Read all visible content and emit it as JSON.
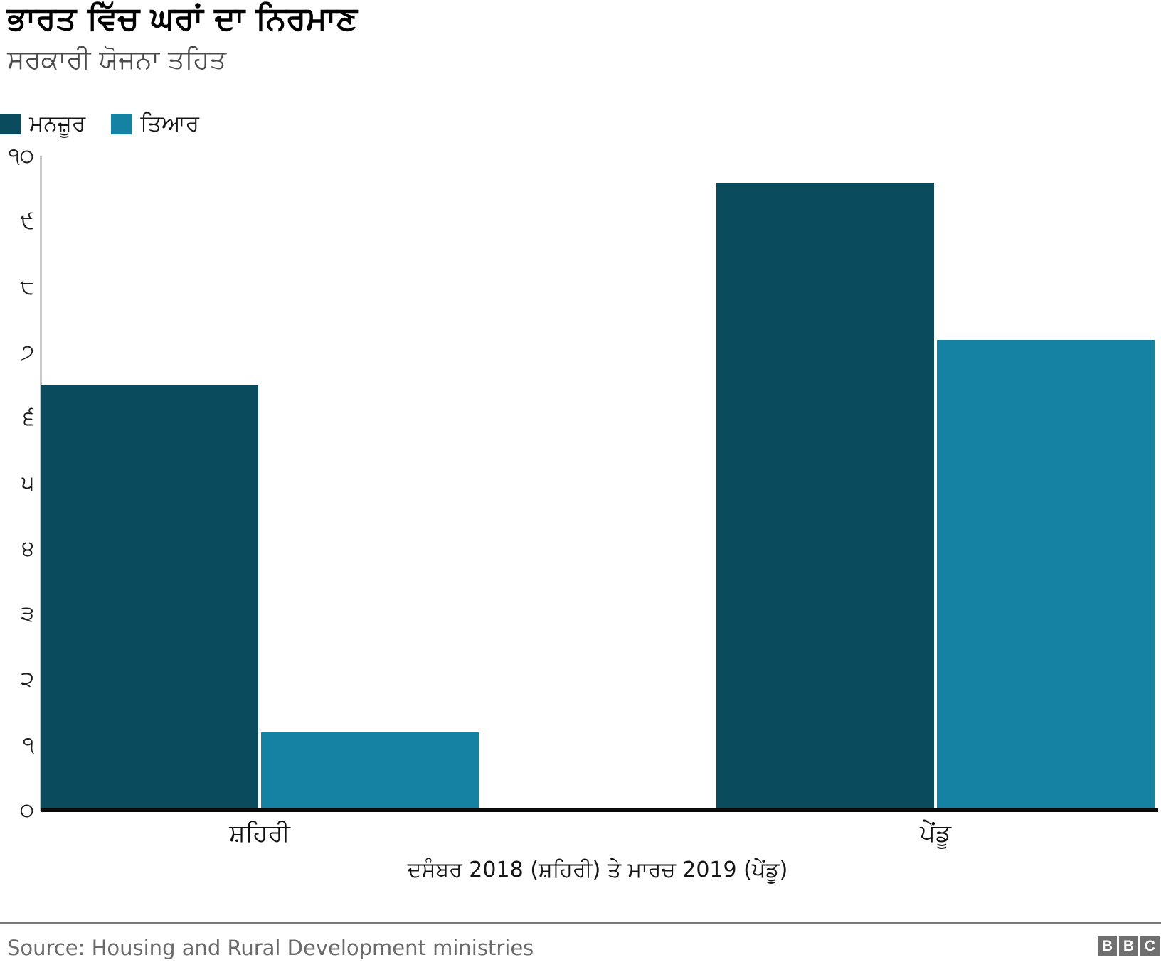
{
  "header": {
    "title": "ਭਾਰਤ ਵਿੱਚ ਘਰਾਂ ਦਾ ਨਿਰਮਾਣ",
    "subtitle": "ਸਰਕਾਰੀ ਯੋਜਨਾ ਤਹਿਤ"
  },
  "chart_data": {
    "type": "bar",
    "title": "ਭਾਰਤ ਵਿੱਚ ਘਰਾਂ ਦਾ ਨਿਰਮਾਣ",
    "subtitle": "ਸਰਕਾਰੀ ਯੋਜਨਾ ਤਹਿਤ",
    "categories": [
      "ਸ਼ਹਿਰੀ",
      "ਪੇਂਡੂ"
    ],
    "series": [
      {
        "name": "ਮਨਜ਼ੂਰ",
        "values": [
          6.5,
          9.6
        ],
        "color": "#0b4b5e"
      },
      {
        "name": "ਤਿਆਰ",
        "values": [
          1.2,
          7.2
        ],
        "color": "#1581a3"
      }
    ],
    "xlabel": "ਦਸੰਬਰ 2018 (ਸ਼ਹਿਰੀ) ਤੇ ਮਾਰਚ 2019 (ਪੇਂਡੂ)",
    "ylabel": "",
    "ylim": [
      0,
      10
    ],
    "ytick_values": [
      0,
      1,
      2,
      3,
      4,
      5,
      6,
      7,
      8,
      9,
      10
    ],
    "ytick_labels": [
      "੦",
      "੧",
      "੨",
      "੩",
      "੪",
      "੫",
      "੬",
      "੭",
      "੮",
      "੯",
      "੧੦"
    ],
    "grid": false,
    "legend_position": "top-left"
  },
  "footer": {
    "source": "Source: Housing and Rural Development ministries",
    "logo_letters": [
      "B",
      "B",
      "C"
    ]
  }
}
